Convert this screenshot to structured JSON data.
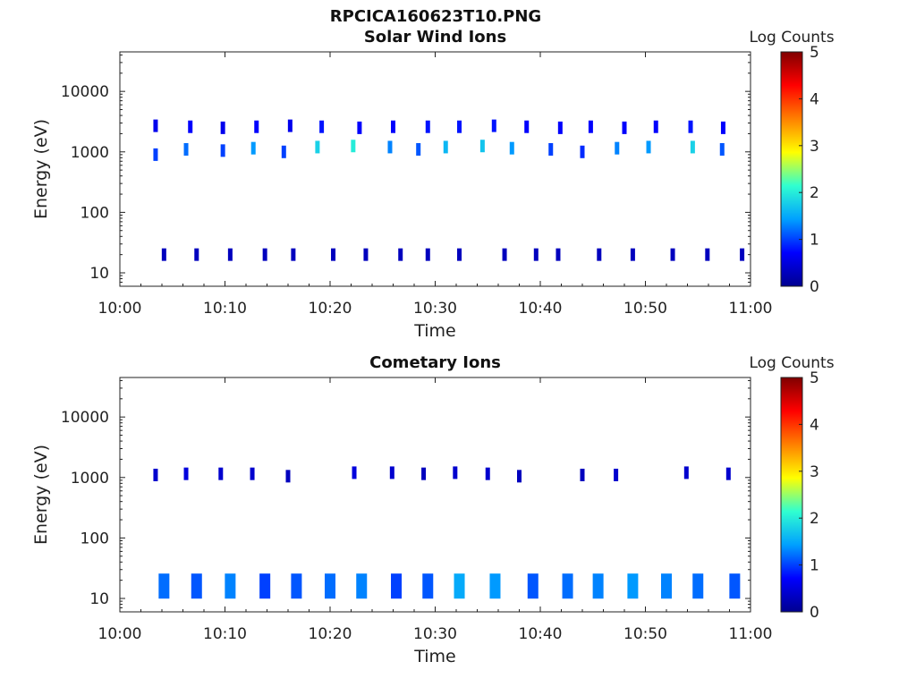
{
  "figure": {
    "title": "RPCICA160623T10.PNG"
  },
  "colorscale": {
    "label": "Log Counts",
    "ticks": [
      "0",
      "1",
      "2",
      "3",
      "4",
      "5"
    ],
    "min": 0,
    "max": 5,
    "colors": [
      "#00008f",
      "#0000ff",
      "#00a0ff",
      "#30ffd0",
      "#ffff00",
      "#ff8000",
      "#ff0000",
      "#800000"
    ]
  },
  "chart_data": [
    {
      "type": "heatmap",
      "title": "Solar Wind Ions",
      "xlabel": "Time",
      "ylabel": "Energy (eV)",
      "yscale": "log",
      "xlim": [
        "10:00",
        "11:00"
      ],
      "ylim": [
        6,
        45000
      ],
      "x_ticks": [
        "10:00",
        "10:10",
        "10:20",
        "10:30",
        "10:40",
        "10:50",
        "11:00"
      ],
      "y_ticks": [
        "10",
        "100",
        "1000",
        "10000"
      ],
      "series": [
        {
          "group": "main peak (~700–1400 eV, log counts)",
          "points": [
            [
              3.4,
              900,
              1.0
            ],
            [
              6.3,
              1100,
              1.2
            ],
            [
              9.8,
              1050,
              1.0
            ],
            [
              12.7,
              1150,
              1.4
            ],
            [
              15.6,
              1000,
              1.0
            ],
            [
              18.8,
              1200,
              1.8
            ],
            [
              22.2,
              1250,
              2.0
            ],
            [
              25.7,
              1200,
              1.3
            ],
            [
              28.4,
              1100,
              1.1
            ],
            [
              31.0,
              1200,
              1.6
            ],
            [
              34.5,
              1250,
              1.7
            ],
            [
              37.3,
              1150,
              1.4
            ],
            [
              41.0,
              1100,
              1.0
            ],
            [
              44.0,
              1000,
              0.9
            ],
            [
              47.3,
              1150,
              1.3
            ],
            [
              50.3,
              1200,
              1.4
            ],
            [
              54.5,
              1200,
              1.8
            ],
            [
              57.3,
              1100,
              1.1
            ]
          ]
        },
        {
          "group": "secondary band (~2000–3000 eV, log counts)",
          "points": [
            [
              3.4,
              2700,
              0.6
            ],
            [
              6.7,
              2600,
              0.7
            ],
            [
              9.8,
              2500,
              0.6
            ],
            [
              13.0,
              2600,
              0.7
            ],
            [
              16.2,
              2700,
              0.6
            ],
            [
              19.2,
              2600,
              0.8
            ],
            [
              22.8,
              2500,
              0.7
            ],
            [
              26.0,
              2600,
              0.7
            ],
            [
              29.3,
              2600,
              0.8
            ],
            [
              32.3,
              2600,
              0.8
            ],
            [
              35.6,
              2700,
              0.8
            ],
            [
              38.7,
              2600,
              0.7
            ],
            [
              41.9,
              2500,
              0.7
            ],
            [
              44.8,
              2600,
              0.7
            ],
            [
              48.0,
              2500,
              0.7
            ],
            [
              51.0,
              2600,
              0.7
            ],
            [
              54.3,
              2600,
              0.8
            ],
            [
              57.4,
              2500,
              0.7
            ]
          ]
        },
        {
          "group": "low energy band (~10–30 eV, log counts)",
          "points": [
            [
              4.2,
              20,
              0.3
            ],
            [
              7.3,
              20,
              0.3
            ],
            [
              10.5,
              20,
              0.3
            ],
            [
              13.8,
              20,
              0.3
            ],
            [
              16.5,
              20,
              0.3
            ],
            [
              20.3,
              20,
              0.3
            ],
            [
              23.4,
              20,
              0.3
            ],
            [
              26.7,
              20,
              0.3
            ],
            [
              29.3,
              20,
              0.3
            ],
            [
              32.3,
              20,
              0.3
            ],
            [
              36.6,
              20,
              0.3
            ],
            [
              39.6,
              20,
              0.3
            ],
            [
              41.7,
              20,
              0.3
            ],
            [
              45.6,
              20,
              0.3
            ],
            [
              48.8,
              20,
              0.3
            ],
            [
              52.6,
              20,
              0.3
            ],
            [
              55.9,
              20,
              0.3
            ],
            [
              59.2,
              20,
              0.3
            ]
          ]
        }
      ]
    },
    {
      "type": "heatmap",
      "title": "Cometary Ions",
      "xlabel": "Time",
      "ylabel": "Energy (eV)",
      "yscale": "log",
      "xlim": [
        "10:00",
        "11:00"
      ],
      "ylim": [
        6,
        45000
      ],
      "x_ticks": [
        "10:00",
        "10:10",
        "10:20",
        "10:30",
        "10:40",
        "10:50",
        "11:00"
      ],
      "y_ticks": [
        "10",
        "100",
        "1000",
        "10000"
      ],
      "series": [
        {
          "group": "low energy band (~10–35 eV, log counts)",
          "points": [
            [
              4.2,
              16,
              1.2
            ],
            [
              7.3,
              16,
              1.1
            ],
            [
              10.5,
              16,
              1.3
            ],
            [
              13.8,
              16,
              1.0
            ],
            [
              16.8,
              16,
              1.1
            ],
            [
              20.0,
              16,
              1.2
            ],
            [
              23.0,
              16,
              1.3
            ],
            [
              26.3,
              16,
              1.0
            ],
            [
              29.3,
              16,
              1.1
            ],
            [
              32.3,
              16,
              1.5
            ],
            [
              35.7,
              16,
              1.4
            ],
            [
              39.3,
              16,
              1.1
            ],
            [
              42.6,
              16,
              1.2
            ],
            [
              45.5,
              16,
              1.3
            ],
            [
              48.8,
              16,
              1.4
            ],
            [
              52.0,
              16,
              1.3
            ],
            [
              55.0,
              16,
              1.2
            ],
            [
              58.5,
              16,
              1.1
            ]
          ]
        },
        {
          "group": "high energy band (~1000–1300 eV, log counts)",
          "points": [
            [
              3.4,
              1100,
              0.4
            ],
            [
              6.3,
              1150,
              0.5
            ],
            [
              9.6,
              1150,
              0.4
            ],
            [
              12.6,
              1150,
              0.4
            ],
            [
              16.0,
              1050,
              0.3
            ],
            [
              22.3,
              1200,
              0.5
            ],
            [
              25.9,
              1200,
              0.4
            ],
            [
              28.9,
              1150,
              0.3
            ],
            [
              31.9,
              1200,
              0.4
            ],
            [
              35.0,
              1150,
              0.4
            ],
            [
              38.0,
              1050,
              0.3
            ],
            [
              44.0,
              1100,
              0.3
            ],
            [
              47.2,
              1100,
              0.4
            ],
            [
              53.9,
              1200,
              0.4
            ],
            [
              57.9,
              1150,
              0.4
            ]
          ]
        }
      ]
    }
  ]
}
